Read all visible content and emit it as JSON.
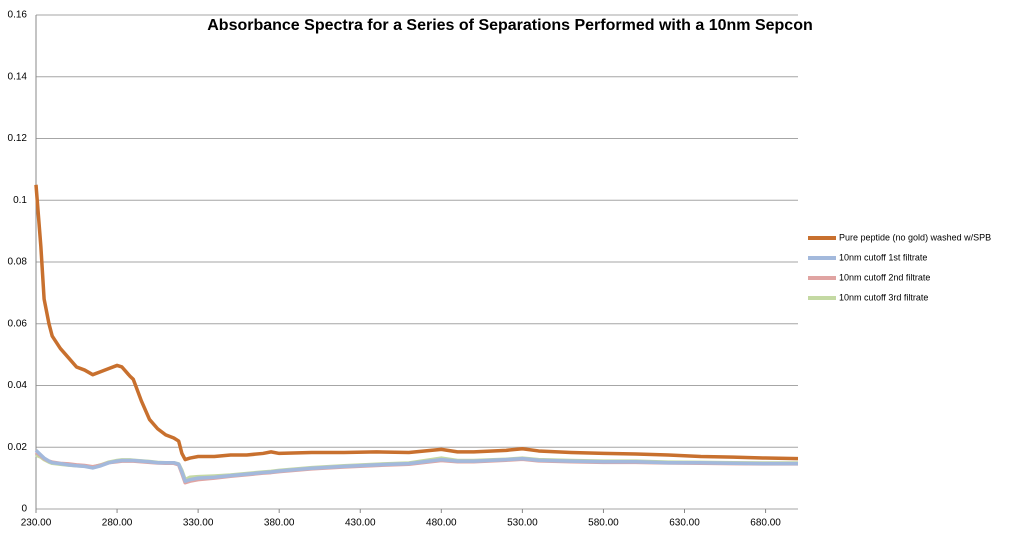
{
  "chart_data": {
    "type": "line",
    "title": "Absorbance Spectra for a Series of Separations Performed with a 10nm Sepcon",
    "x": [
      230,
      233,
      235,
      238,
      240,
      245,
      250,
      255,
      260,
      265,
      270,
      275,
      280,
      283,
      288,
      290,
      295,
      300,
      305,
      310,
      315,
      318,
      320,
      322,
      325,
      330,
      340,
      350,
      360,
      370,
      375,
      380,
      400,
      420,
      440,
      460,
      480,
      490,
      500,
      520,
      530,
      540,
      560,
      580,
      600,
      620,
      640,
      660,
      680,
      700
    ],
    "series": [
      {
        "name": "Pure peptide (no gold) washed w/SPB",
        "color": "#c8702e",
        "values": [
          0.105,
          0.085,
          0.068,
          0.06,
          0.056,
          0.052,
          0.049,
          0.046,
          0.045,
          0.0435,
          0.0445,
          0.0455,
          0.0465,
          0.046,
          0.043,
          0.042,
          0.035,
          0.029,
          0.026,
          0.024,
          0.023,
          0.022,
          0.018,
          0.016,
          0.0165,
          0.017,
          0.017,
          0.0175,
          0.0175,
          0.018,
          0.0185,
          0.018,
          0.0183,
          0.0183,
          0.0185,
          0.0183,
          0.0193,
          0.0185,
          0.0185,
          0.019,
          0.0195,
          0.0188,
          0.0183,
          0.018,
          0.0178,
          0.0175,
          0.017,
          0.0168,
          0.0165,
          0.0163
        ]
      },
      {
        "name": "10nm cutoff 1st filtrate",
        "color": "#a3b9dc",
        "values": [
          0.019,
          0.0175,
          0.0165,
          0.0155,
          0.015,
          0.0147,
          0.0143,
          0.014,
          0.0138,
          0.0133,
          0.014,
          0.015,
          0.0155,
          0.0157,
          0.0157,
          0.0157,
          0.0155,
          0.0153,
          0.015,
          0.015,
          0.015,
          0.0145,
          0.012,
          0.009,
          0.0095,
          0.01,
          0.0103,
          0.0108,
          0.0113,
          0.0118,
          0.012,
          0.0123,
          0.0132,
          0.0138,
          0.0143,
          0.0147,
          0.016,
          0.0155,
          0.0155,
          0.016,
          0.0163,
          0.0158,
          0.0155,
          0.0153,
          0.0153,
          0.015,
          0.015,
          0.0148,
          0.0147,
          0.0147
        ]
      },
      {
        "name": "10nm cutoff 2nd filtrate",
        "color": "#e0a4a2",
        "values": [
          0.0185,
          0.0172,
          0.0163,
          0.0155,
          0.0152,
          0.0148,
          0.0146,
          0.0143,
          0.0141,
          0.0137,
          0.0142,
          0.015,
          0.0153,
          0.0155,
          0.0155,
          0.0155,
          0.0153,
          0.0151,
          0.0149,
          0.0148,
          0.0148,
          0.0143,
          0.0115,
          0.0085,
          0.009,
          0.0095,
          0.01,
          0.0106,
          0.0111,
          0.0116,
          0.0118,
          0.0121,
          0.013,
          0.0136,
          0.0141,
          0.0145,
          0.0157,
          0.0153,
          0.0153,
          0.0158,
          0.0161,
          0.0156,
          0.0153,
          0.0151,
          0.0151,
          0.0149,
          0.0148,
          0.0147,
          0.0146,
          0.0146
        ]
      },
      {
        "name": "10nm cutoff 3rd filtrate",
        "color": "#c4d9a3",
        "values": [
          0.0175,
          0.0168,
          0.016,
          0.0152,
          0.0148,
          0.0145,
          0.0142,
          0.014,
          0.0139,
          0.0136,
          0.0143,
          0.0152,
          0.0157,
          0.0159,
          0.0159,
          0.0158,
          0.0156,
          0.0154,
          0.0151,
          0.015,
          0.015,
          0.0146,
          0.0125,
          0.0095,
          0.0103,
          0.0105,
          0.0107,
          0.011,
          0.0115,
          0.012,
          0.0122,
          0.0125,
          0.0134,
          0.014,
          0.0145,
          0.0149,
          0.0165,
          0.0157,
          0.0157,
          0.0161,
          0.0165,
          0.016,
          0.0157,
          0.0155,
          0.0155,
          0.0152,
          0.0151,
          0.015,
          0.0149,
          0.0149
        ]
      }
    ],
    "xlim": [
      230,
      700
    ],
    "xticks": [
      {
        "value": 230,
        "label": "230.00"
      },
      {
        "value": 280,
        "label": "280.00"
      },
      {
        "value": 330,
        "label": "330.00"
      },
      {
        "value": 380,
        "label": "380.00"
      },
      {
        "value": 430,
        "label": "430.00"
      },
      {
        "value": 480,
        "label": "480.00"
      },
      {
        "value": 530,
        "label": "530.00"
      },
      {
        "value": 580,
        "label": "580.00"
      },
      {
        "value": 630,
        "label": "630.00"
      },
      {
        "value": 680,
        "label": "680.00"
      }
    ],
    "ylim": [
      0,
      0.16
    ],
    "yticks": [
      0,
      0.02,
      0.04,
      0.06,
      0.08,
      0.1,
      0.12,
      0.14,
      0.16
    ],
    "grid": true,
    "legend": "right"
  }
}
